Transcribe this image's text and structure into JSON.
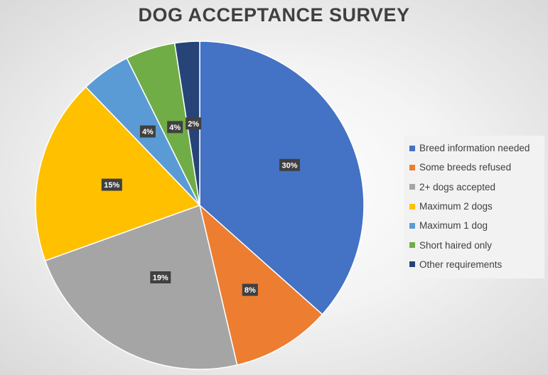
{
  "chart_data": {
    "type": "pie",
    "title": "DOG ACCEPTANCE SURVEY",
    "legend_position": "right",
    "categories": [
      "Breed information needed",
      "Some breeds refused",
      "2+ dogs accepted",
      "Maximum  2 dogs",
      "Maximum 1 dog",
      "Short haired only",
      "Other requirements"
    ],
    "values": [
      30,
      8,
      19,
      15,
      4,
      4,
      2
    ],
    "data_labels": [
      "30%",
      "8%",
      "19%",
      "15%",
      "4%",
      "4%",
      "2%"
    ],
    "colors": [
      "#4472c4",
      "#ed7d31",
      "#a5a5a5",
      "#ffc000",
      "#5b9bd5",
      "#70ad47",
      "#264478"
    ]
  }
}
